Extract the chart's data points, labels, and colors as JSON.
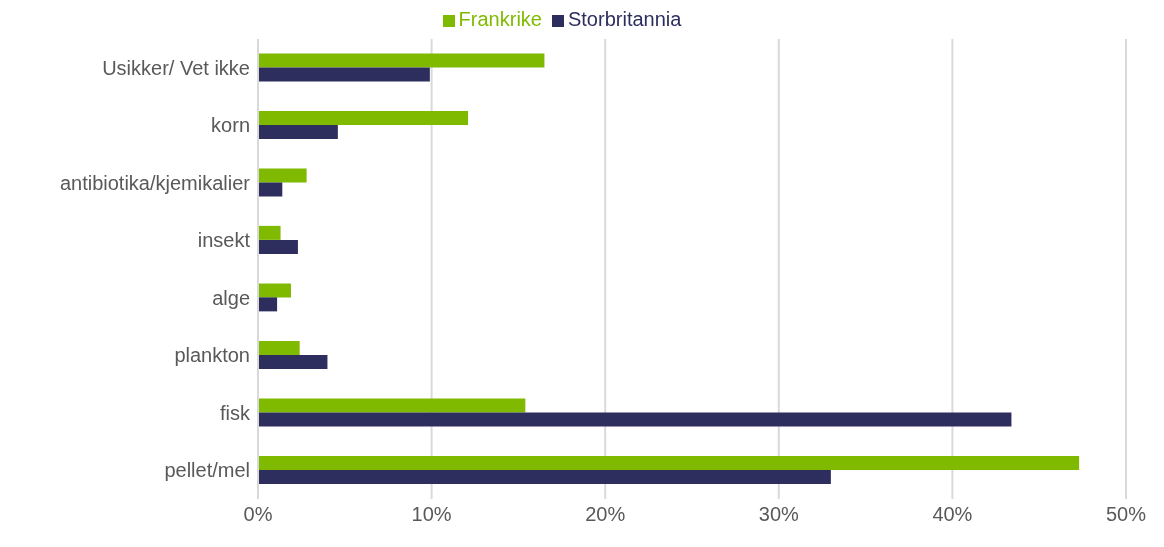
{
  "chart_data": {
    "type": "bar",
    "orientation": "horizontal",
    "categories": [
      "Usikker/ Vet ikke",
      "korn",
      "antibiotika/kjemikalier",
      "insekt",
      "alge",
      "plankton",
      "fisk",
      "pellet/mel"
    ],
    "series": [
      {
        "name": "Frankrike",
        "color": "#7fba00",
        "values": [
          16.5,
          12.1,
          2.8,
          1.3,
          1.9,
          2.4,
          15.4,
          47.3
        ]
      },
      {
        "name": "Storbritannia",
        "color": "#2e2e5e",
        "values": [
          9.9,
          4.6,
          1.4,
          2.3,
          1.1,
          4.0,
          43.4,
          33.0
        ]
      }
    ],
    "xlim": [
      0,
      50
    ],
    "xticks": [
      {
        "value": 0,
        "label": "0%"
      },
      {
        "value": 10,
        "label": "10%"
      },
      {
        "value": 20,
        "label": "20%"
      },
      {
        "value": 30,
        "label": "30%"
      },
      {
        "value": 40,
        "label": "40%"
      },
      {
        "value": 50,
        "label": "50%"
      }
    ],
    "grid": "x",
    "legend": "top"
  }
}
